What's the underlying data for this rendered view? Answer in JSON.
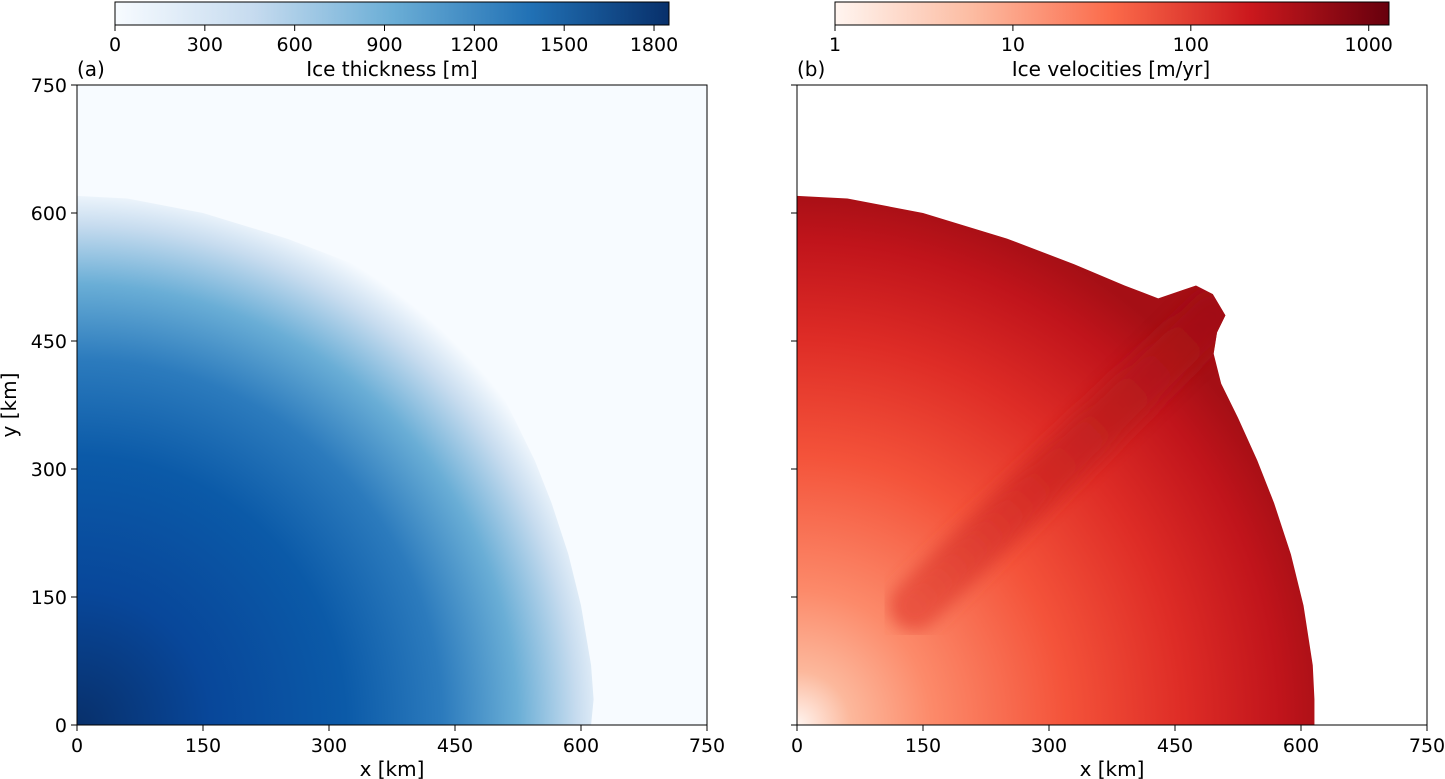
{
  "chart_data": [
    {
      "type": "heatmap",
      "panel_label": "(a)",
      "xlabel": "x [km]",
      "ylabel": "y [km]",
      "xlim": [
        0,
        750
      ],
      "ylim": [
        0,
        750
      ],
      "xticks": [
        "0",
        "150",
        "300",
        "450",
        "600",
        "750"
      ],
      "yticks": [
        "0",
        "150",
        "300",
        "450",
        "600",
        "750"
      ],
      "colorbar": {
        "label": "Ice thickness [m]",
        "scale": "linear",
        "range": [
          0,
          1850
        ],
        "ticks": [
          "0",
          "300",
          "600",
          "900",
          "1200",
          "1500",
          "1800"
        ],
        "colormap": [
          "#f7fbff",
          "#c6dbef",
          "#6baed6",
          "#2171b5",
          "#08306b"
        ]
      },
      "ice_margin_km": [
        [
          0,
          620
        ],
        [
          60,
          617
        ],
        [
          150,
          600
        ],
        [
          250,
          570
        ],
        [
          330,
          540
        ],
        [
          390,
          515
        ],
        [
          430,
          500
        ],
        [
          460,
          510
        ],
        [
          470,
          512
        ],
        [
          490,
          500
        ],
        [
          505,
          480
        ],
        [
          496,
          460
        ],
        [
          492,
          435
        ],
        [
          500,
          400
        ],
        [
          520,
          360
        ],
        [
          545,
          310
        ],
        [
          565,
          260
        ],
        [
          585,
          200
        ],
        [
          600,
          140
        ],
        [
          612,
          70
        ],
        [
          615,
          30
        ],
        [
          612,
          0
        ]
      ],
      "max_thickness_m": 1850
    },
    {
      "type": "heatmap",
      "panel_label": "(b)",
      "xlabel": "x [km]",
      "xlim": [
        0,
        750
      ],
      "ylim": [
        0,
        750
      ],
      "xticks": [
        "0",
        "150",
        "300",
        "450",
        "600",
        "750"
      ],
      "colorbar": {
        "label": "Ice velocities [m/yr]",
        "scale": "log",
        "range": [
          1,
          1300
        ],
        "ticks": [
          "1",
          "10",
          "100",
          "1000"
        ],
        "colormap": [
          "#fff5f0",
          "#fcbba1",
          "#fb6a4a",
          "#cb181d",
          "#67000d"
        ]
      },
      "ice_margin_km": [
        [
          0,
          620
        ],
        [
          60,
          617
        ],
        [
          150,
          600
        ],
        [
          250,
          570
        ],
        [
          330,
          540
        ],
        [
          390,
          515
        ],
        [
          430,
          500
        ],
        [
          460,
          510
        ],
        [
          475,
          515
        ],
        [
          495,
          505
        ],
        [
          510,
          480
        ],
        [
          500,
          460
        ],
        [
          496,
          435
        ],
        [
          505,
          400
        ],
        [
          525,
          360
        ],
        [
          548,
          310
        ],
        [
          568,
          260
        ],
        [
          588,
          200
        ],
        [
          603,
          140
        ],
        [
          614,
          70
        ],
        [
          616,
          30
        ],
        [
          616,
          0
        ]
      ],
      "ice_stream": {
        "from_km": [
          140,
          140
        ],
        "to_km": [
          495,
          480
        ],
        "width_km": 60,
        "velocity_m_per_yr": 500
      },
      "max_velocity_m_per_yr": 1300
    }
  ]
}
